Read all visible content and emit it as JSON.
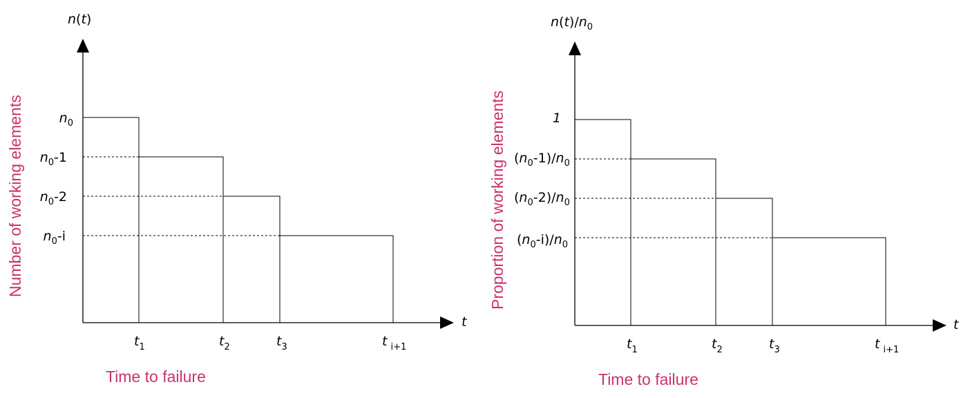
{
  "diagram": {
    "left": {
      "y_axis_title": "n(t)",
      "x_axis_symbol": "t",
      "y_side_label": "Number of working elements",
      "x_bottom_label": "Time to failure",
      "y_ticks": [
        "n0",
        "n0-1",
        "n0-2",
        "n0-i"
      ],
      "x_ticks": [
        "t1",
        "t2",
        "t3",
        "t i+1"
      ]
    },
    "right": {
      "y_axis_title": "n(t)/n0",
      "x_axis_symbol": "t",
      "y_side_label": "Proportion of working elements",
      "x_bottom_label": "Time to failure",
      "y_ticks": [
        "1",
        "(n0-1)/n0",
        "(n0-2)/n0",
        "(n0-i)/n0"
      ],
      "x_ticks": [
        "t1",
        "t2",
        "t3",
        "t i+1"
      ]
    }
  }
}
